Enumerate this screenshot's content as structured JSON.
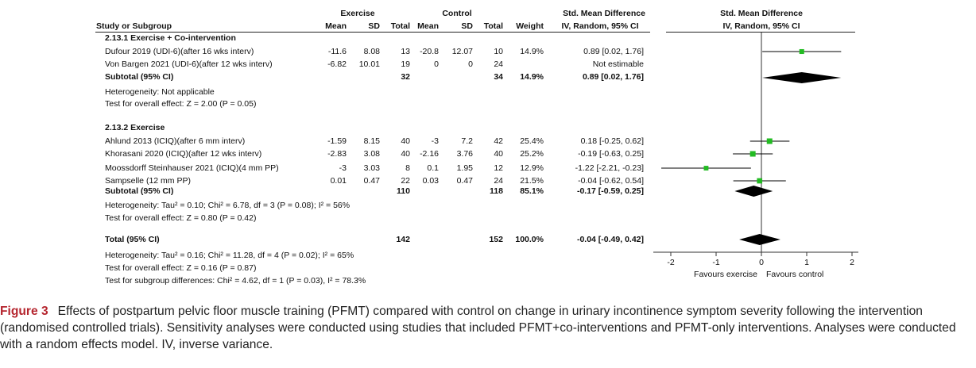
{
  "chart_data": {
    "type": "forest",
    "headers": {
      "study": "Study or Subgroup",
      "group1": "Exercise",
      "group2": "Control",
      "mean": "Mean",
      "sd": "SD",
      "total": "Total",
      "weight": "Weight",
      "smd_title": "Std. Mean Difference",
      "smd_sub": "IV, Random, 95% CI",
      "plot_title": "Std. Mean Difference",
      "plot_sub": "IV, Random, 95% CI"
    },
    "subgroups": [
      {
        "title": "2.13.1 Exercise + Co-intervention",
        "studies": [
          {
            "name": "Dufour 2019 (UDI-6)(after 16 wks interv)",
            "ex_mean": "-11.6",
            "ex_sd": "8.08",
            "ex_total": "13",
            "ct_mean": "-20.8",
            "ct_sd": "12.07",
            "ct_total": "10",
            "weight": "14.9%",
            "ci_text": "0.89 [0.02, 1.76]",
            "est": 0.89,
            "lo": 0.02,
            "hi": 1.76,
            "w": 14.9
          },
          {
            "name": "Von Bargen 2021 (UDI-6)(after 12 wks interv)",
            "ex_mean": "-6.82",
            "ex_sd": "10.01",
            "ex_total": "19",
            "ct_mean": "0",
            "ct_sd": "0",
            "ct_total": "24",
            "weight": "",
            "ci_text": "Not estimable",
            "est": null,
            "lo": null,
            "hi": null,
            "w": 0
          }
        ],
        "subtotal": {
          "label": "Subtotal (95% CI)",
          "ex_total": "32",
          "ct_total": "34",
          "weight": "14.9%",
          "ci_text": "0.89 [0.02, 1.76]",
          "est": 0.89,
          "lo": 0.02,
          "hi": 1.76
        },
        "heterogeneity": "Heterogeneity: Not applicable",
        "overall": "Test for overall effect: Z = 2.00 (P = 0.05)"
      },
      {
        "title": "2.13.2 Exercise",
        "studies": [
          {
            "name": "Ahlund 2013 (ICIQ)(after 6 mm interv)",
            "ex_mean": "-1.59",
            "ex_sd": "8.15",
            "ex_total": "40",
            "ct_mean": "-3",
            "ct_sd": "7.2",
            "ct_total": "42",
            "weight": "25.4%",
            "ci_text": "0.18 [-0.25, 0.62]",
            "est": 0.18,
            "lo": -0.25,
            "hi": 0.62,
            "w": 25.4
          },
          {
            "name": "Khorasani 2020 (ICIQ)(after 12 wks  interv)",
            "ex_mean": "-2.83",
            "ex_sd": "3.08",
            "ex_total": "40",
            "ct_mean": "-2.16",
            "ct_sd": "3.76",
            "ct_total": "40",
            "weight": "25.2%",
            "ci_text": "-0.19 [-0.63, 0.25]",
            "est": -0.19,
            "lo": -0.63,
            "hi": 0.25,
            "w": 25.2
          },
          {
            "name": "Moossdorff Steinhauser 2021 (ICIQ)(4 mm PP)",
            "ex_mean": "-3",
            "ex_sd": "3.03",
            "ex_total": "8",
            "ct_mean": "0.1",
            "ct_sd": "1.95",
            "ct_total": "12",
            "weight": "12.9%",
            "ci_text": "-1.22 [-2.21, -0.23]",
            "est": -1.22,
            "lo": -2.21,
            "hi": -0.23,
            "w": 12.9
          },
          {
            "name": "Sampselle (12 mm PP)",
            "ex_mean": "0.01",
            "ex_sd": "0.47",
            "ex_total": "22",
            "ct_mean": "0.03",
            "ct_sd": "0.47",
            "ct_total": "24",
            "weight": "21.5%",
            "ci_text": "-0.04 [-0.62, 0.54]",
            "est": -0.04,
            "lo": -0.62,
            "hi": 0.54,
            "w": 21.5
          }
        ],
        "subtotal": {
          "label": "Subtotal (95% CI)",
          "ex_total": "110",
          "ct_total": "118",
          "weight": "85.1%",
          "ci_text": "-0.17 [-0.59, 0.25]",
          "est": -0.17,
          "lo": -0.59,
          "hi": 0.25
        },
        "heterogeneity": "Heterogeneity: Tau² = 0.10; Chi² = 6.78, df = 3 (P = 0.08); I² = 56%",
        "overall": "Test for overall effect: Z = 0.80 (P = 0.42)"
      }
    ],
    "total": {
      "label": "Total (95% CI)",
      "ex_total": "142",
      "ct_total": "152",
      "weight": "100.0%",
      "ci_text": "-0.04 [-0.49, 0.42]",
      "est": -0.04,
      "lo": -0.49,
      "hi": 0.42
    },
    "footer": {
      "heterogeneity": "Heterogeneity: Tau² = 0.16; Chi² = 11.28, df = 4 (P = 0.02); I² = 65%",
      "overall": "Test for overall effect: Z = 0.16 (P = 0.87)",
      "subgroup": "Test for subgroup differences: Chi² = 4.62, df = 1 (P = 0.03), I² = 78.3%"
    },
    "axis": {
      "xlim": [
        -2,
        2
      ],
      "ticks": [
        -2,
        -1,
        0,
        1,
        2
      ],
      "tick_labels": [
        "-2",
        "-1",
        "0",
        "1",
        "2"
      ],
      "favours_left": "Favours exercise",
      "favours_right": "Favours control"
    },
    "colors": {
      "square": "#22bb22",
      "diamond": "#000000",
      "line": "#000000"
    }
  },
  "caption": {
    "label": "Figure 3",
    "text": "Effects of postpartum pelvic floor muscle training (PFMT) compared with control on change in urinary incontinence symptom severity following the intervention (randomised controlled trials). Sensitivity analyses were conducted using studies that included PFMT+co-interventions and PFMT-only interventions. Analyses were conducted with a random effects model. IV, inverse variance."
  }
}
